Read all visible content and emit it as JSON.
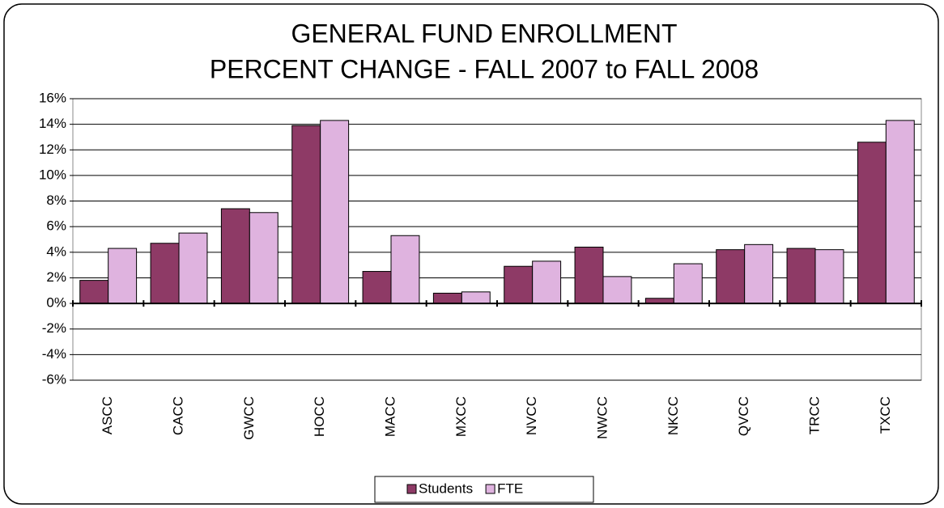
{
  "chart_data": {
    "type": "bar",
    "title": "GENERAL FUND ENROLLMENT",
    "subtitle": "PERCENT CHANGE - FALL 2007 to FALL 2008",
    "categories": [
      "ASCC",
      "CACC",
      "GWCC",
      "HOCC",
      "MACC",
      "MXCC",
      "NVCC",
      "NWCC",
      "NKCC",
      "QVCC",
      "TRCC",
      "TXCC"
    ],
    "series": [
      {
        "name": "Students",
        "color": "#8e3a66",
        "values": [
          1.8,
          4.7,
          7.4,
          13.9,
          2.5,
          0.8,
          2.9,
          4.4,
          0.4,
          4.2,
          4.3,
          12.6
        ]
      },
      {
        "name": "FTE",
        "color": "#dfb3df",
        "values": [
          4.3,
          5.5,
          7.1,
          14.3,
          5.3,
          0.9,
          3.3,
          2.1,
          3.1,
          4.6,
          4.2,
          14.3
        ]
      }
    ],
    "ylim": [
      -6,
      16
    ],
    "yticks": [
      {
        "value": -6,
        "label": "-6%"
      },
      {
        "value": -4,
        "label": "-4%"
      },
      {
        "value": -2,
        "label": "-2%"
      },
      {
        "value": 0,
        "label": "0%"
      },
      {
        "value": 2,
        "label": "2%"
      },
      {
        "value": 4,
        "label": "4%"
      },
      {
        "value": 6,
        "label": "6%"
      },
      {
        "value": 8,
        "label": "8%"
      },
      {
        "value": 10,
        "label": "10%"
      },
      {
        "value": 12,
        "label": "12%"
      },
      {
        "value": 14,
        "label": "14%"
      },
      {
        "value": 16,
        "label": "16%"
      }
    ],
    "grid": true,
    "legend": "bottom"
  }
}
